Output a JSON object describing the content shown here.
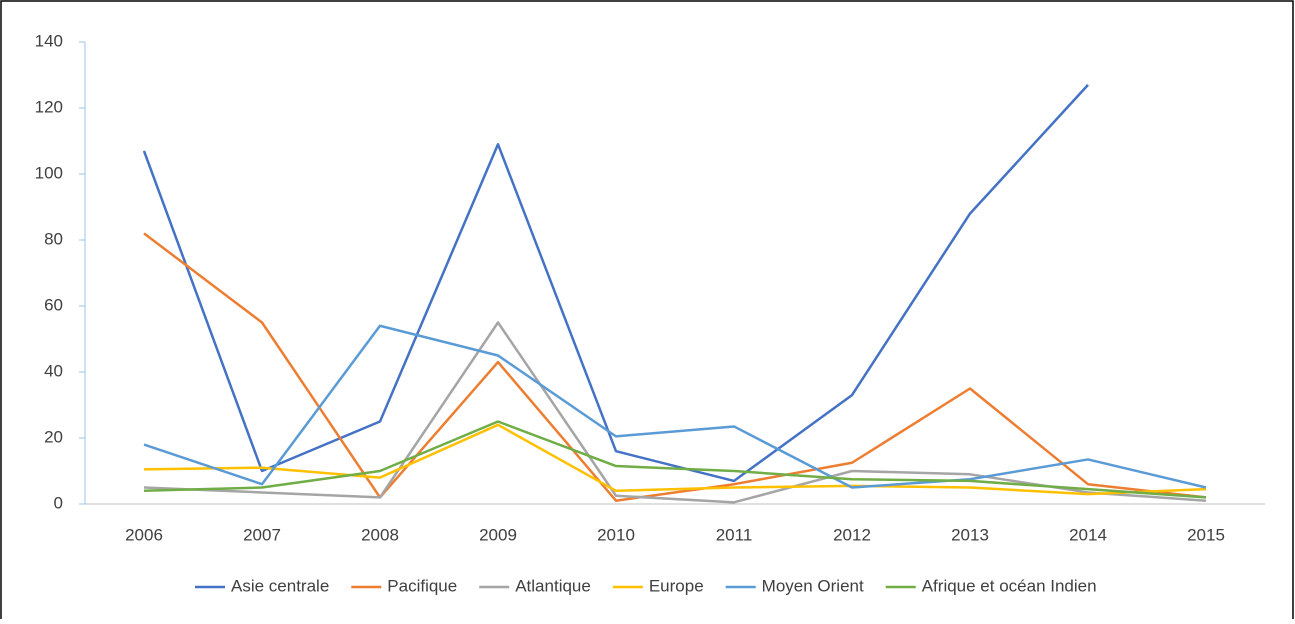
{
  "chart_data": {
    "type": "line",
    "categories": [
      "2006",
      "2007",
      "2008",
      "2009",
      "2010",
      "2011",
      "2012",
      "2013",
      "2014",
      "2015"
    ],
    "series": [
      {
        "name": "Asie centrale",
        "color": "#4472c4",
        "values": [
          107,
          10,
          25,
          109,
          16,
          7,
          33,
          88,
          127,
          null
        ]
      },
      {
        "name": "Pacifique",
        "color": "#ed7d31",
        "values": [
          82,
          55,
          2,
          43,
          1,
          6,
          12.5,
          35,
          6,
          2
        ]
      },
      {
        "name": "Atlantique",
        "color": "#a5a5a5",
        "values": [
          5,
          3.5,
          2,
          55,
          2.5,
          0.5,
          10,
          9,
          3.5,
          1
        ]
      },
      {
        "name": "Europe",
        "color": "#ffc000",
        "values": [
          10.5,
          11,
          8,
          24,
          4,
          5,
          5.5,
          5,
          3,
          4.5
        ]
      },
      {
        "name": "Moyen Orient",
        "color": "#5b9bd5",
        "values": [
          18,
          6,
          54,
          45,
          20.5,
          23.5,
          5,
          7.5,
          13.5,
          5
        ]
      },
      {
        "name": "Afrique et océan Indien",
        "color": "#70ad47",
        "values": [
          4,
          5,
          10,
          25,
          11.5,
          10,
          7.5,
          7,
          4.5,
          2
        ]
      }
    ],
    "ylim": [
      0,
      140
    ],
    "yticks": [
      0,
      20,
      40,
      60,
      80,
      100,
      120,
      140
    ],
    "grid": false,
    "legend": "bottom"
  }
}
